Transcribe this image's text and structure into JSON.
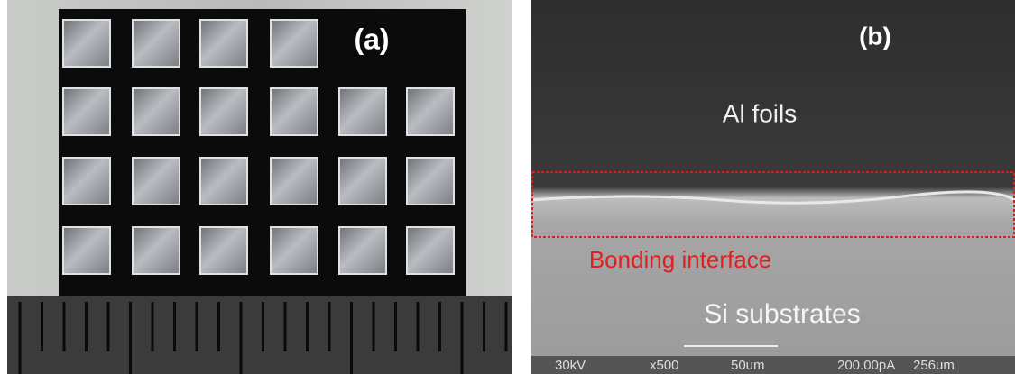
{
  "panel_a": {
    "label": "(a)"
  },
  "panel_b": {
    "label": "(b)",
    "top_layer": "Al foils",
    "interface": "Bonding interface",
    "bottom_layer": "Si substrates",
    "info_bar": {
      "voltage": "30kV",
      "magnification": "x500",
      "scale": "50um",
      "current": "200.00pA",
      "field": "256um"
    }
  }
}
